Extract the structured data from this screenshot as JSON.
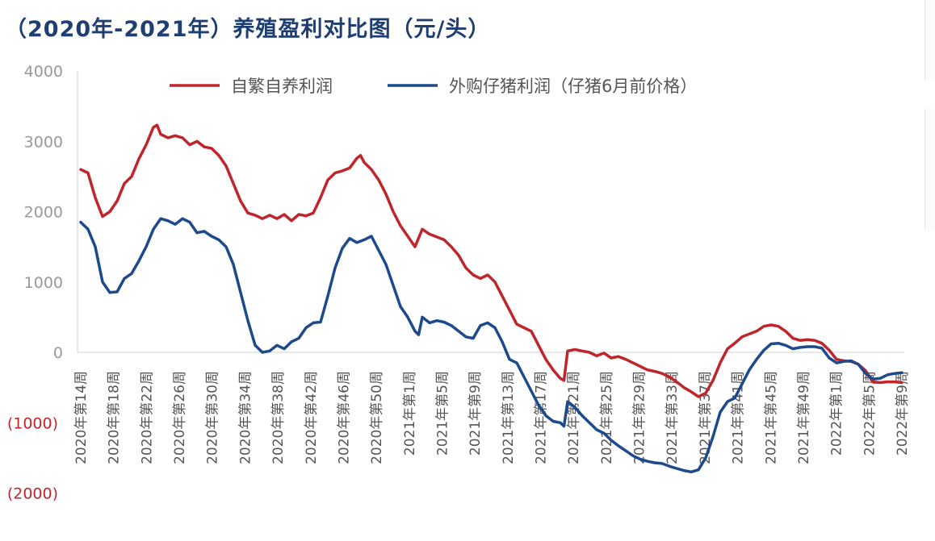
{
  "title": "（2020年-2021年）养殖盈利对比图（元/头）",
  "colors": {
    "self_bred": "#c0252c",
    "purchased": "#1c4a8c",
    "neg_tick": "#c0252c",
    "tick": "#999999"
  },
  "chart_data": {
    "type": "line",
    "title": "（2020年-2021年）养殖盈利对比图（元/头）",
    "ylim": [
      -2000,
      4000
    ],
    "y_ticks": [
      "4000",
      "3000",
      "2000",
      "1000",
      "0",
      "(1000)",
      "(2000)"
    ],
    "y_tick_values": [
      4000,
      3000,
      2000,
      1000,
      0,
      -1000,
      -2000
    ],
    "legend_position": "top",
    "categories": [
      "2020年第14周",
      "2020年第18周",
      "2020年第22周",
      "2020年第26周",
      "2020年第30周",
      "2020年第34周",
      "2020年第38周",
      "2020年第42周",
      "2020年第46周",
      "2020年第50周",
      "2021年第1周",
      "2021年第5周",
      "2021年第9周",
      "2021年第13周",
      "2021年第17周",
      "2021年第21周",
      "2021年第25周",
      "2021年第29周",
      "2021年第33周",
      "2021年第37周",
      "2021年第41周",
      "2021年第45周",
      "2021年第49周",
      "2022年第1周",
      "2022年第5周",
      "2022年第9周"
    ],
    "n_points": 104,
    "series": [
      {
        "name": "自繁自养利润",
        "color": "#c0252c",
        "points": [
          [
            0,
            2600
          ],
          [
            2,
            2550
          ],
          [
            4,
            2200
          ],
          [
            6,
            1930
          ],
          [
            8,
            2000
          ],
          [
            10,
            2150
          ],
          [
            12,
            2400
          ],
          [
            14,
            2500
          ],
          [
            16,
            2750
          ],
          [
            18,
            2950
          ],
          [
            20,
            3200
          ],
          [
            21,
            3230
          ],
          [
            22,
            3100
          ],
          [
            24,
            3050
          ],
          [
            26,
            3080
          ],
          [
            28,
            3050
          ],
          [
            30,
            2950
          ],
          [
            32,
            3000
          ],
          [
            34,
            2920
          ],
          [
            36,
            2900
          ],
          [
            38,
            2800
          ],
          [
            40,
            2650
          ],
          [
            42,
            2400
          ],
          [
            44,
            2150
          ],
          [
            46,
            1980
          ],
          [
            48,
            1950
          ],
          [
            50,
            1900
          ],
          [
            52,
            1950
          ],
          [
            54,
            1900
          ],
          [
            56,
            1960
          ],
          [
            58,
            1870
          ],
          [
            60,
            1960
          ],
          [
            62,
            1940
          ],
          [
            64,
            1980
          ],
          [
            66,
            2200
          ],
          [
            68,
            2450
          ],
          [
            70,
            2550
          ],
          [
            72,
            2580
          ],
          [
            74,
            2620
          ],
          [
            76,
            2760
          ],
          [
            77,
            2800
          ],
          [
            78,
            2700
          ],
          [
            80,
            2600
          ],
          [
            82,
            2450
          ],
          [
            84,
            2250
          ],
          [
            86,
            2000
          ],
          [
            88,
            1800
          ],
          [
            90,
            1650
          ],
          [
            92,
            1500
          ],
          [
            94,
            1750
          ],
          [
            96,
            1680
          ],
          [
            98,
            1640
          ],
          [
            100,
            1600
          ],
          [
            102,
            1500
          ],
          [
            104,
            1380
          ],
          [
            106,
            1200
          ],
          [
            108,
            1100
          ],
          [
            110,
            1050
          ],
          [
            112,
            1100
          ],
          [
            114,
            1000
          ],
          [
            116,
            800
          ],
          [
            118,
            600
          ],
          [
            120,
            400
          ],
          [
            122,
            350
          ],
          [
            124,
            300
          ],
          [
            126,
            100
          ],
          [
            128,
            -100
          ],
          [
            130,
            -250
          ],
          [
            132,
            -370
          ],
          [
            133,
            -400
          ],
          [
            134,
            20
          ],
          [
            136,
            40
          ],
          [
            138,
            20
          ],
          [
            140,
            0
          ],
          [
            142,
            -50
          ],
          [
            144,
            -10
          ],
          [
            146,
            -80
          ],
          [
            148,
            -60
          ],
          [
            150,
            -100
          ],
          [
            152,
            -150
          ],
          [
            154,
            -200
          ],
          [
            156,
            -250
          ],
          [
            158,
            -270
          ],
          [
            160,
            -300
          ],
          [
            162,
            -350
          ],
          [
            164,
            -420
          ],
          [
            166,
            -500
          ],
          [
            168,
            -560
          ],
          [
            170,
            -630
          ],
          [
            172,
            -580
          ],
          [
            174,
            -400
          ],
          [
            176,
            -150
          ],
          [
            178,
            50
          ],
          [
            180,
            130
          ],
          [
            182,
            220
          ],
          [
            184,
            260
          ],
          [
            186,
            300
          ],
          [
            188,
            370
          ],
          [
            190,
            390
          ],
          [
            192,
            370
          ],
          [
            194,
            300
          ],
          [
            196,
            200
          ],
          [
            198,
            170
          ],
          [
            200,
            180
          ],
          [
            202,
            170
          ],
          [
            204,
            130
          ],
          [
            206,
            30
          ],
          [
            208,
            -100
          ],
          [
            210,
            -120
          ],
          [
            212,
            -130
          ],
          [
            214,
            -170
          ],
          [
            216,
            -260
          ],
          [
            218,
            -420
          ],
          [
            220,
            -430
          ],
          [
            222,
            -420
          ],
          [
            224,
            -420
          ],
          [
            226,
            -430
          ]
        ]
      },
      {
        "name": "外购仔猪利润（仔猪6月前价格）",
        "color": "#1c4a8c",
        "points": [
          [
            0,
            1850
          ],
          [
            2,
            1750
          ],
          [
            4,
            1500
          ],
          [
            6,
            1000
          ],
          [
            8,
            850
          ],
          [
            10,
            860
          ],
          [
            12,
            1050
          ],
          [
            14,
            1120
          ],
          [
            16,
            1300
          ],
          [
            18,
            1500
          ],
          [
            20,
            1750
          ],
          [
            22,
            1900
          ],
          [
            24,
            1870
          ],
          [
            26,
            1820
          ],
          [
            28,
            1900
          ],
          [
            30,
            1850
          ],
          [
            32,
            1700
          ],
          [
            34,
            1720
          ],
          [
            36,
            1650
          ],
          [
            38,
            1600
          ],
          [
            40,
            1500
          ],
          [
            42,
            1250
          ],
          [
            44,
            850
          ],
          [
            46,
            450
          ],
          [
            48,
            100
          ],
          [
            50,
            0
          ],
          [
            52,
            20
          ],
          [
            54,
            100
          ],
          [
            56,
            50
          ],
          [
            58,
            150
          ],
          [
            60,
            200
          ],
          [
            62,
            350
          ],
          [
            64,
            420
          ],
          [
            66,
            430
          ],
          [
            68,
            800
          ],
          [
            70,
            1200
          ],
          [
            72,
            1480
          ],
          [
            74,
            1620
          ],
          [
            76,
            1560
          ],
          [
            78,
            1600
          ],
          [
            80,
            1650
          ],
          [
            82,
            1450
          ],
          [
            84,
            1250
          ],
          [
            86,
            950
          ],
          [
            88,
            650
          ],
          [
            90,
            500
          ],
          [
            92,
            300
          ],
          [
            93,
            250
          ],
          [
            94,
            500
          ],
          [
            96,
            420
          ],
          [
            98,
            450
          ],
          [
            100,
            430
          ],
          [
            102,
            380
          ],
          [
            104,
            300
          ],
          [
            106,
            220
          ],
          [
            108,
            200
          ],
          [
            110,
            380
          ],
          [
            112,
            420
          ],
          [
            114,
            350
          ],
          [
            116,
            150
          ],
          [
            118,
            -100
          ],
          [
            120,
            -150
          ],
          [
            122,
            -350
          ],
          [
            124,
            -550
          ],
          [
            126,
            -750
          ],
          [
            128,
            -900
          ],
          [
            130,
            -980
          ],
          [
            132,
            -1000
          ],
          [
            133,
            -1050
          ],
          [
            134,
            -700
          ],
          [
            136,
            -780
          ],
          [
            138,
            -900
          ],
          [
            140,
            -1000
          ],
          [
            142,
            -1100
          ],
          [
            144,
            -1150
          ],
          [
            146,
            -1250
          ],
          [
            148,
            -1330
          ],
          [
            150,
            -1400
          ],
          [
            152,
            -1470
          ],
          [
            154,
            -1520
          ],
          [
            156,
            -1550
          ],
          [
            158,
            -1570
          ],
          [
            160,
            -1580
          ],
          [
            162,
            -1620
          ],
          [
            164,
            -1650
          ],
          [
            166,
            -1680
          ],
          [
            168,
            -1700
          ],
          [
            170,
            -1670
          ],
          [
            172,
            -1500
          ],
          [
            174,
            -1200
          ],
          [
            176,
            -850
          ],
          [
            178,
            -700
          ],
          [
            180,
            -650
          ],
          [
            182,
            -450
          ],
          [
            184,
            -250
          ],
          [
            186,
            -100
          ],
          [
            188,
            30
          ],
          [
            190,
            120
          ],
          [
            192,
            130
          ],
          [
            194,
            100
          ],
          [
            196,
            50
          ],
          [
            198,
            70
          ],
          [
            200,
            80
          ],
          [
            202,
            80
          ],
          [
            204,
            60
          ],
          [
            206,
            -80
          ],
          [
            208,
            -150
          ],
          [
            210,
            -130
          ],
          [
            212,
            -120
          ],
          [
            214,
            -170
          ],
          [
            216,
            -300
          ],
          [
            218,
            -380
          ],
          [
            220,
            -370
          ],
          [
            222,
            -320
          ],
          [
            224,
            -300
          ],
          [
            226,
            -290
          ]
        ]
      }
    ]
  }
}
